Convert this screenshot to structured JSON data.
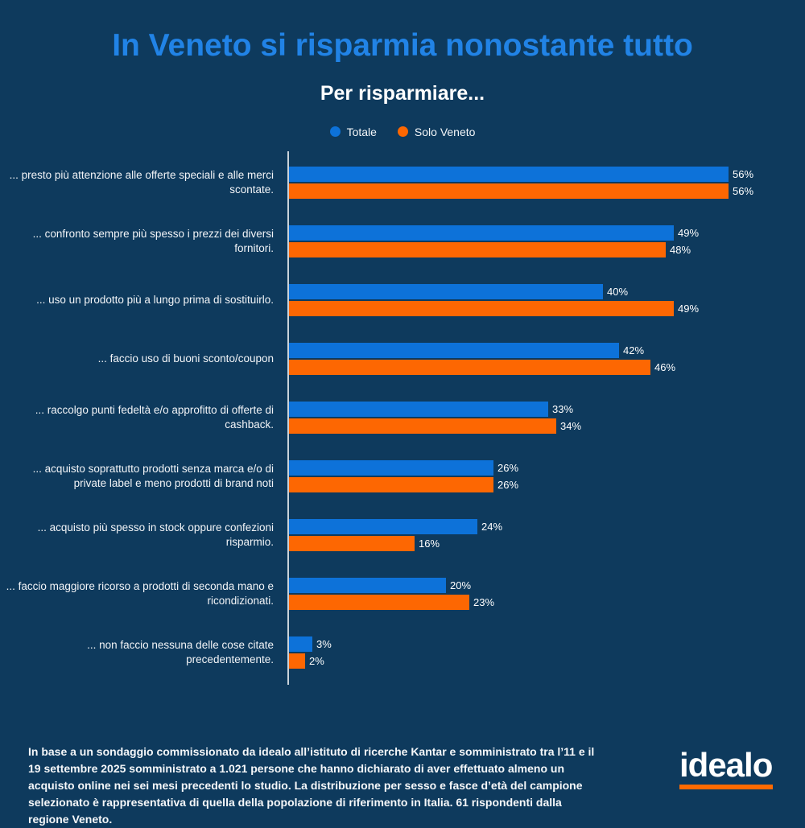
{
  "header": {
    "title": "In Veneto si risparmia nonostante tutto",
    "subtitle": "Per risparmiare..."
  },
  "chart_data": {
    "type": "bar",
    "orientation": "horizontal",
    "title": "Per risparmiare...",
    "categories": [
      "... presto più attenzione alle offerte speciali e alle merci scontate.",
      "... confronto sempre più spesso i prezzi dei diversi fornitori.",
      "... uso un prodotto più a lungo prima di sostituirlo.",
      "... faccio uso di buoni sconto/coupon",
      "... raccolgo punti fedeltà e/o approfitto di offerte di cashback.",
      "... acquisto soprattutto prodotti senza marca e/o di private label e meno prodotti di brand noti",
      "... acquisto più spesso in stock oppure confezioni risparmio.",
      "... faccio maggiore ricorso a prodotti di seconda mano e ricondizionati.",
      "... non faccio nessuna delle cose citate precedentemente."
    ],
    "series": [
      {
        "name": "Totale",
        "color": "#0d72d9",
        "values": [
          56,
          49,
          40,
          42,
          33,
          26,
          24,
          20,
          3
        ]
      },
      {
        "name": "Solo Veneto",
        "color": "#fd6702",
        "values": [
          56,
          48,
          49,
          46,
          34,
          26,
          16,
          23,
          2
        ]
      }
    ],
    "value_suffix": "%",
    "xlim": [
      0,
      60
    ],
    "grid": false,
    "legend_position": "top"
  },
  "footer": {
    "note": "In base a un sondaggio commissionato da idealo all’istituto di ricerche Kantar e somministrato tra l’11 e il 19 settembre 2025 somministrato a 1.021 persone che hanno dichiarato di aver effettuato almeno un acquisto online nei sei mesi precedenti lo studio. La distribuzione per sesso e fasce d’età del campione selezionato è rappresentativa di quella della popolazione di riferimento in Italia. 61 rispondenti dalla regione Veneto.",
    "logo_text": "idealo"
  },
  "colors": {
    "background": "#0e3a5d",
    "title": "#2183e6",
    "axis_line": "#c9d2da",
    "text": "#ffffff",
    "totale": "#0d72d9",
    "solo_veneto": "#fd6702",
    "logo_underline": "#ff6a00"
  }
}
